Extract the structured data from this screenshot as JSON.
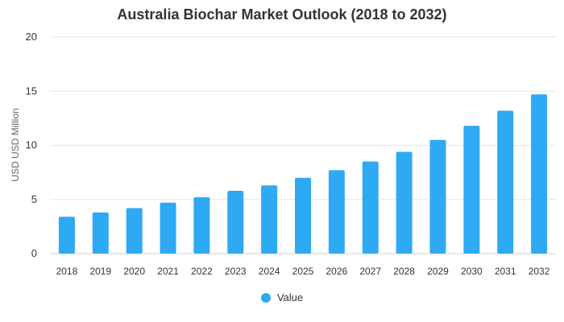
{
  "chart_data": {
    "type": "bar",
    "title": "Australia Biochar Market Outlook (2018 to 2032)",
    "xlabel": "",
    "ylabel": "USD USD Million",
    "ylim": [
      0,
      20
    ],
    "yticks": [
      "0",
      "5",
      "10",
      "15",
      "20"
    ],
    "categories": [
      "2018",
      "2019",
      "2020",
      "2021",
      "2022",
      "2023",
      "2024",
      "2025",
      "2026",
      "2027",
      "2028",
      "2029",
      "2030",
      "2031",
      "2032"
    ],
    "series": [
      {
        "name": "Value",
        "color": "#2eaaf5",
        "values": [
          3.4,
          3.8,
          4.2,
          4.7,
          5.2,
          5.8,
          6.3,
          7.0,
          7.7,
          8.5,
          9.4,
          10.5,
          11.8,
          13.2,
          14.7
        ]
      }
    ],
    "grid": true,
    "legend_position": "bottom"
  }
}
